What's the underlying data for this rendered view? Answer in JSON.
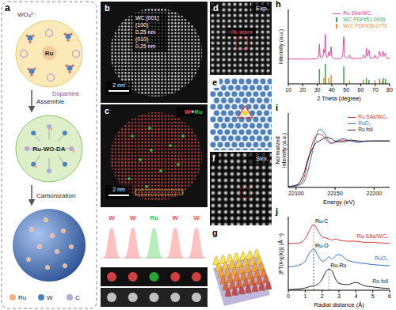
{
  "figure": {
    "a": {
      "panel": "a",
      "ion": "WO₄²⁻",
      "metal": "Ru",
      "ligand": "Dopamine",
      "step1": "Assemble",
      "intermediate": "Ru-WO-DA",
      "step2": "Carbonization",
      "key": [
        {
          "name": "Ru",
          "color": "#f4b183"
        },
        {
          "name": "W",
          "color": "#4f81bd"
        },
        {
          "name": "C",
          "color": "#b4a7d6"
        }
      ]
    },
    "b": {
      "panel": "b",
      "annotations": [
        "WC [001]",
        "(100)",
        "0.25 nm",
        "(010)",
        "0.25 nm"
      ],
      "scale_bar": "2 nm"
    },
    "c": {
      "panel": "c",
      "channels": [
        {
          "name": "W",
          "color": "#ff4d4d"
        },
        {
          "name": "Ru",
          "color": "#2ecc40"
        }
      ],
      "join": "+",
      "scale_bar": "2 nm",
      "profile": [
        "W",
        "W",
        "Ru",
        "W",
        "W"
      ]
    },
    "d": {
      "panel": "d",
      "title": "Exp.",
      "annotation": "Ru atom"
    },
    "e": {
      "panel": "e"
    },
    "f": {
      "panel": "f",
      "title": "Sim."
    },
    "g": {
      "panel": "g"
    }
  },
  "chart_data": [
    {
      "panel": "h",
      "type": "line",
      "x_label": "2 Theta (degree)",
      "y_label": "Intensity (a.u.)",
      "x": [
        10,
        20,
        25,
        30,
        31,
        31.5,
        32,
        33,
        34,
        34.5,
        35,
        35.6,
        36,
        37,
        38,
        38.5,
        39,
        39.6,
        40,
        42,
        46,
        47.5,
        48.3,
        49,
        51,
        52.3,
        53,
        58,
        61,
        61.9,
        63,
        63.5,
        64,
        64.5,
        65,
        65.7,
        66.5,
        69,
        69.8,
        71,
        72,
        73,
        74,
        74.9,
        75.5,
        76,
        77,
        78,
        80
      ],
      "series": [
        {
          "name": "Ru SAs/WCₓ",
          "color": "#e0409a",
          "values": [
            0.5,
            0.5,
            0.5,
            0.51,
            0.56,
            0.8,
            0.56,
            0.52,
            0.56,
            0.7,
            0.62,
            1.0,
            0.62,
            0.53,
            0.65,
            0.56,
            0.6,
            0.75,
            0.56,
            0.51,
            0.51,
            0.56,
            0.95,
            0.56,
            0.52,
            0.58,
            0.52,
            0.51,
            0.52,
            0.58,
            0.52,
            0.55,
            0.72,
            0.56,
            0.58,
            0.68,
            0.52,
            0.53,
            0.58,
            0.51,
            0.52,
            0.66,
            0.55,
            0.58,
            0.66,
            0.55,
            0.62,
            0.52,
            0.51
          ]
        }
      ],
      "references": [
        {
          "name": "WC PDF#51-0939",
          "color": "#3aa655",
          "positions": [
            31.5,
            35.6,
            48.3,
            63.9,
            65.7,
            73.1,
            75.5,
            77.1
          ],
          "heights": [
            0.3,
            0.4,
            0.35,
            0.12,
            0.08,
            0.1,
            0.12,
            0.1
          ]
        },
        {
          "name": "W₂C PDF#35-0776",
          "color": "#f28e2b",
          "positions": [
            34.5,
            38.0,
            39.6,
            52.3,
            61.9,
            69.8,
            74.9
          ],
          "heights": [
            0.12,
            0.12,
            0.18,
            0.07,
            0.08,
            0.07,
            0.06
          ]
        }
      ],
      "xlim": [
        10,
        80
      ],
      "xticks": [
        10,
        20,
        30,
        40,
        50,
        60,
        70,
        80
      ],
      "ylim": [
        0,
        1.5
      ],
      "tick_labels": "x",
      "legend": "upper right"
    },
    {
      "panel": "i",
      "type": "line",
      "x_label": "Energy (eV)",
      "y_label": "Normalized intensity (a.u.)",
      "x": [
        22090,
        22100,
        22105,
        22110,
        22115,
        22120,
        22125,
        22130,
        22135,
        22140,
        22145,
        22150,
        22160,
        22170,
        22180,
        22190,
        22200,
        22210,
        22220
      ],
      "series": [
        {
          "name": "Ru SAs/WCₓ",
          "color": "#e03030",
          "values": [
            0.02,
            0.04,
            0.08,
            0.2,
            0.55,
            0.9,
            1.1,
            1.15,
            1.1,
            1.0,
            0.95,
            0.97,
            1.02,
            1.0,
            0.98,
            1.0,
            1.0,
            1.0,
            1.0
          ]
        },
        {
          "name": "RuO₂",
          "color": "#2f6fd6",
          "values": [
            0.02,
            0.03,
            0.06,
            0.12,
            0.35,
            0.7,
            1.05,
            1.25,
            1.2,
            1.05,
            0.95,
            0.98,
            1.05,
            1.0,
            0.97,
            1.0,
            1.0,
            1.0,
            1.0
          ]
        },
        {
          "name": "Ru foil",
          "color": "#222222",
          "values": [
            0.02,
            0.05,
            0.12,
            0.3,
            0.6,
            0.8,
            0.95,
            1.0,
            1.05,
            1.08,
            1.05,
            1.0,
            0.98,
            1.02,
            1.0,
            0.99,
            1.0,
            1.0,
            1.0
          ]
        }
      ],
      "xlim": [
        22090,
        22220
      ],
      "xticks": [
        22100,
        22150,
        22200
      ],
      "ylim": [
        0,
        1.6
      ],
      "tick_labels": "x",
      "legend": "upper right"
    },
    {
      "panel": "j",
      "type": "line",
      "x_label": "Radial distance (Å)",
      "y_label": "|FT(k²χ(k))| (Å⁻³)",
      "x": [
        0,
        0.5,
        1,
        1.2,
        1.5,
        1.8,
        2,
        2.2,
        2.4,
        2.6,
        2.8,
        3,
        3.5,
        4,
        4.5,
        5,
        5.5,
        6
      ],
      "series": [
        {
          "name": "Ru SAs/WCₓ",
          "color": "#e03030",
          "values": [
            2.1,
            2.1,
            2.3,
            2.6,
            2.95,
            2.6,
            2.4,
            2.35,
            2.3,
            2.25,
            2.3,
            2.25,
            2.2,
            2.2,
            2.15,
            2.15,
            2.12,
            2.1
          ]
        },
        {
          "name": "RuO₂",
          "color": "#2f6fd6",
          "values": [
            1.05,
            1.1,
            1.3,
            1.6,
            1.85,
            1.5,
            1.3,
            1.35,
            1.5,
            1.4,
            1.55,
            1.6,
            1.35,
            1.25,
            1.2,
            1.15,
            1.12,
            1.1
          ]
        },
        {
          "name": "Ru foil",
          "color": "#222222",
          "values": [
            0.02,
            0.05,
            0.1,
            0.15,
            0.2,
            0.3,
            0.5,
            0.8,
            0.95,
            0.85,
            0.5,
            0.3,
            0.25,
            0.35,
            0.2,
            0.15,
            0.1,
            0.08
          ]
        }
      ],
      "annotations": [
        {
          "text": "Ru-C",
          "x": 1.5,
          "series": "Ru SAs/WCₓ"
        },
        {
          "text": "Ru-O",
          "x": 1.5,
          "series": "RuO₂"
        },
        {
          "text": "Ru-Ru",
          "x": 2.4,
          "series": "Ru foil"
        }
      ],
      "xlim": [
        0,
        6
      ],
      "xticks": [
        0,
        1,
        2,
        3,
        4,
        5,
        6
      ],
      "ylim": [
        0,
        3.3
      ],
      "tick_labels": "x",
      "legend": "inline"
    }
  ]
}
